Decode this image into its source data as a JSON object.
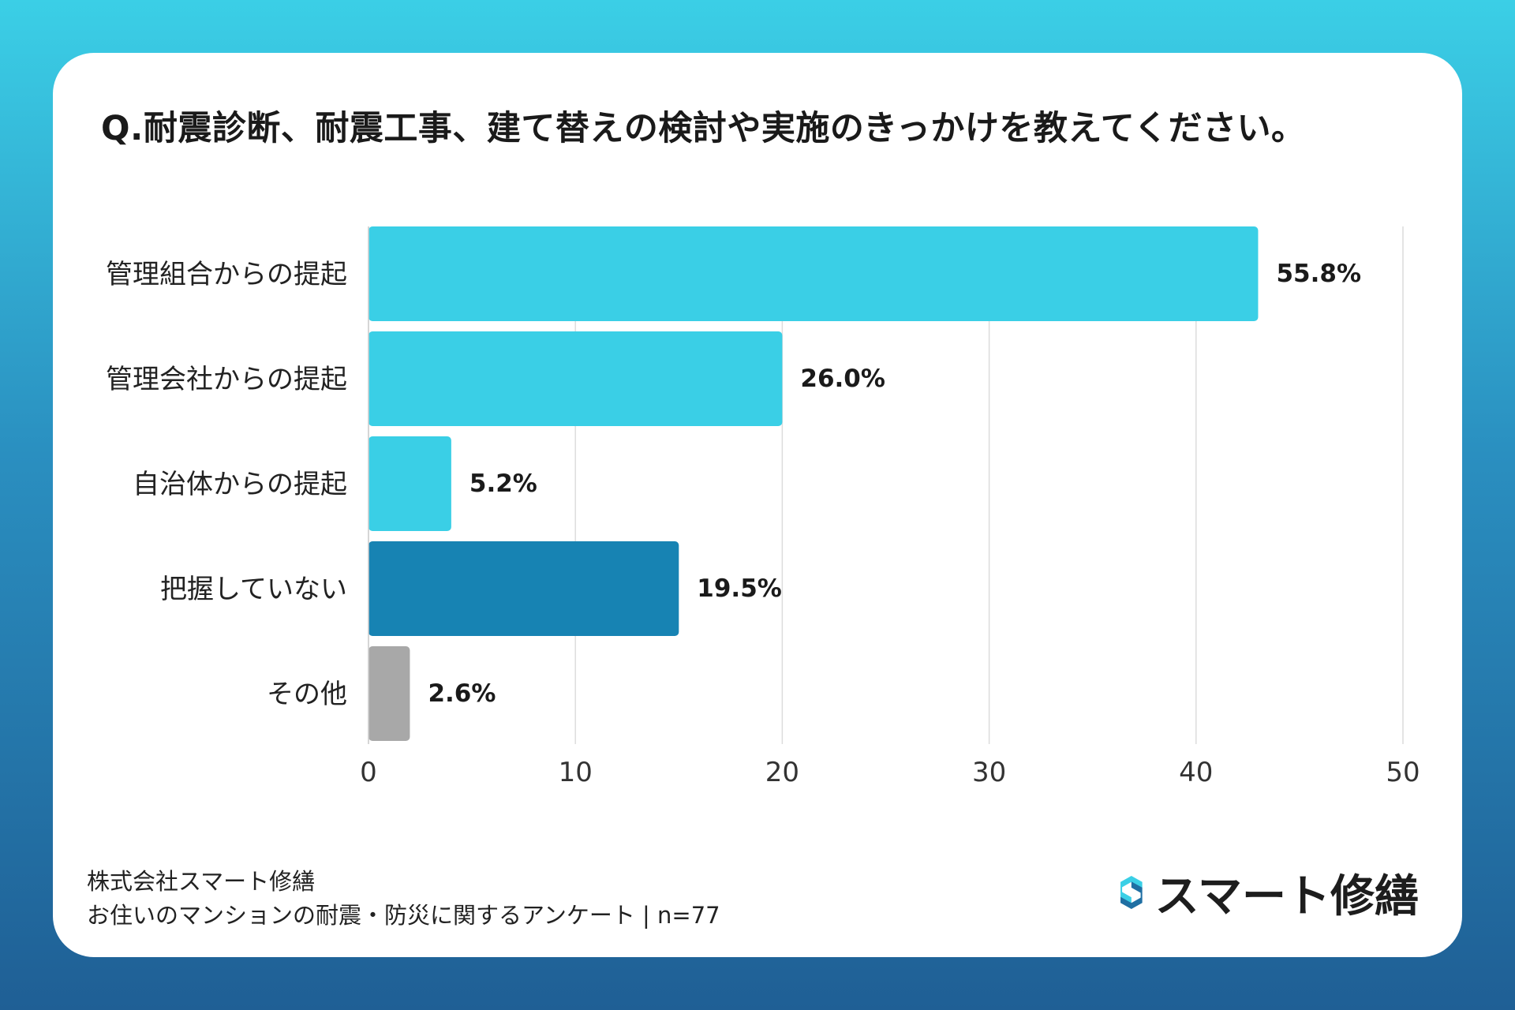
{
  "title": "Q.耐震診断、耐震工事、建て替えの検討や実施のきっかけを教えてください。",
  "chart_data": {
    "type": "bar",
    "orientation": "horizontal",
    "categories": [
      "管理組合からの提起",
      "管理会社からの提起",
      "自治体からの提起",
      "把握していない",
      "その他"
    ],
    "values": [
      43,
      20,
      4,
      15,
      2
    ],
    "data_labels": [
      "55.8%",
      "26.0%",
      "5.2%",
      "19.5%",
      "2.6%"
    ],
    "bar_colors": [
      "#3acfe6",
      "#3acfe6",
      "#3acfe6",
      "#1783b3",
      "#a8a8a8"
    ],
    "xlim": [
      0,
      50
    ],
    "xticks": [
      "0",
      "10",
      "20",
      "30",
      "40",
      "50"
    ],
    "grid": true
  },
  "footer": {
    "line1": "株式会社スマート修繕",
    "line2": "お住いのマンションの耐震・防災に関するアンケート | n=77"
  },
  "logo": {
    "text": "スマート修繕",
    "color_light": "#3acfe6",
    "color_dark": "#1f6fa3"
  }
}
